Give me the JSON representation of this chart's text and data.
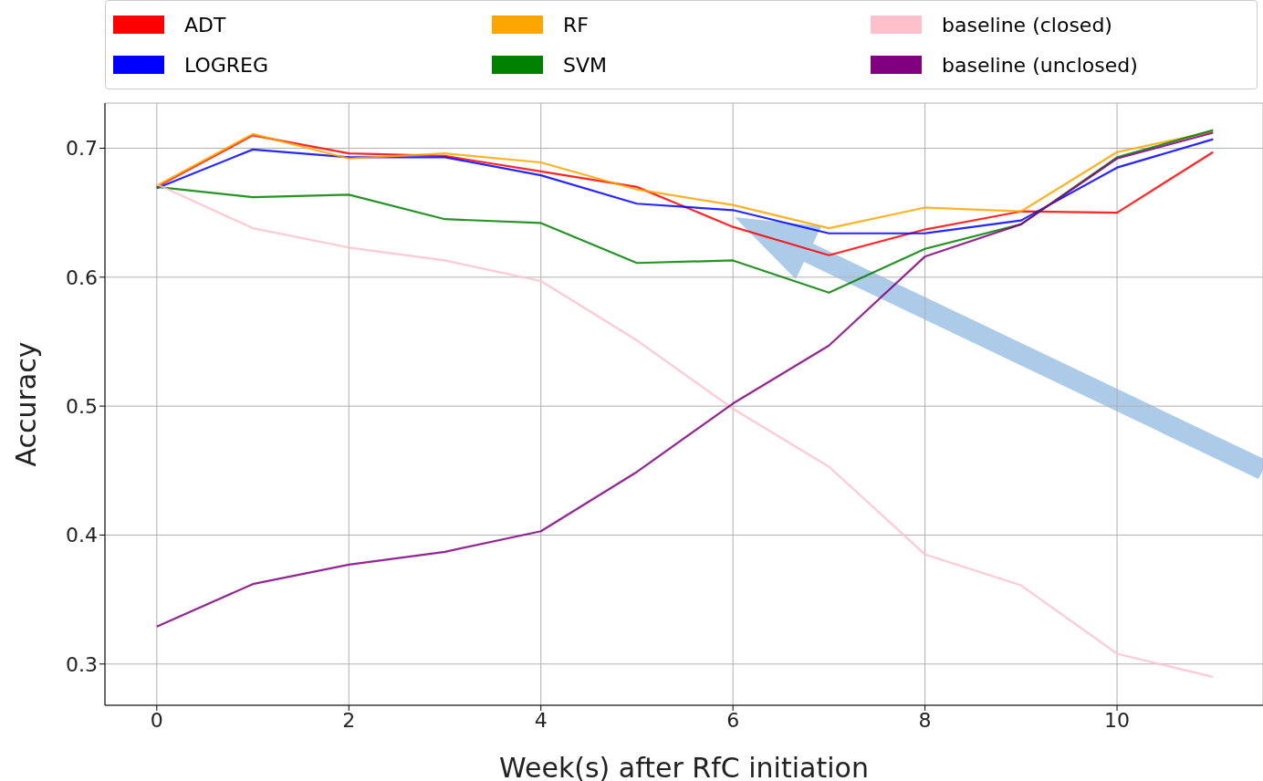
{
  "chart_data": {
    "type": "line",
    "xlabel": "Week(s) after RfC initiation",
    "ylabel": "Accuracy",
    "x": [
      0,
      1,
      2,
      3,
      4,
      5,
      6,
      7,
      8,
      9,
      10,
      11
    ],
    "series": [
      {
        "name": "ADT",
        "color": "#ff0000",
        "values": [
          0.67,
          0.71,
          0.696,
          0.694,
          0.682,
          0.67,
          0.639,
          0.617,
          0.637,
          0.651,
          0.65,
          0.697
        ]
      },
      {
        "name": "LOGREG",
        "color": "#0000ff",
        "values": [
          0.669,
          0.699,
          0.693,
          0.693,
          0.679,
          0.657,
          0.652,
          0.634,
          0.634,
          0.644,
          0.685,
          0.707
        ]
      },
      {
        "name": "RF",
        "color": "#ffa500",
        "values": [
          0.671,
          0.711,
          0.692,
          0.696,
          0.689,
          0.668,
          0.656,
          0.638,
          0.654,
          0.651,
          0.697,
          0.713
        ]
      },
      {
        "name": "SVM",
        "color": "#008000",
        "values": [
          0.67,
          0.662,
          0.664,
          0.645,
          0.642,
          0.611,
          0.613,
          0.588,
          0.622,
          0.641,
          0.693,
          0.714
        ]
      },
      {
        "name": "baseline (closed)",
        "color": "#ffc0cb",
        "values": [
          0.672,
          0.638,
          0.623,
          0.613,
          0.597,
          0.551,
          0.498,
          0.453,
          0.385,
          0.361,
          0.308,
          0.29
        ]
      },
      {
        "name": "baseline (unclosed)",
        "color": "#800080",
        "values": [
          0.329,
          0.362,
          0.377,
          0.387,
          0.403,
          0.449,
          0.502,
          0.547,
          0.616,
          0.641,
          0.692,
          0.712
        ]
      }
    ],
    "xlim": [
      -0.54,
      11.52
    ],
    "xticks": [
      0,
      2,
      4,
      6,
      8,
      10
    ],
    "ylim": [
      0.268,
      0.735
    ],
    "yticks": [
      0.3,
      0.4,
      0.5,
      0.6,
      0.7
    ],
    "grid": true,
    "legend": "top",
    "marker": "none",
    "line_style": "solid"
  }
}
